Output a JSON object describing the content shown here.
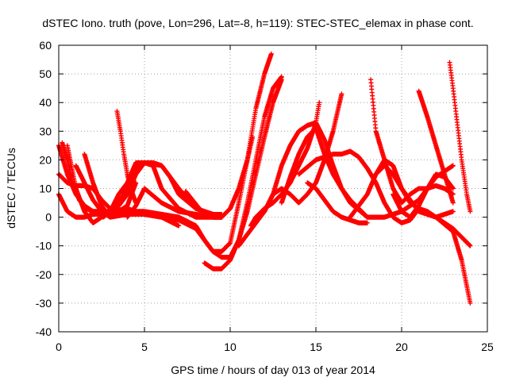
{
  "chart_data": {
    "type": "scatter",
    "title": "dSTEC Iono. truth (pove, Lon=296, Lat=-8, h=119): STEC-STEC_elemax in phase cont.",
    "xlabel": "GPS time / hours of day 013 of year 2014",
    "ylabel": "dSTEC  / TECUs",
    "xlim": [
      0,
      25
    ],
    "ylim": [
      -40,
      60
    ],
    "xticks": [
      0,
      5,
      10,
      15,
      20,
      25
    ],
    "yticks": [
      -40,
      -30,
      -20,
      -10,
      0,
      10,
      20,
      30,
      40,
      50,
      60
    ],
    "grid": true,
    "marker": "+",
    "color": "#ff0000",
    "series": [
      {
        "x": [
          0.0,
          0.5,
          1.0,
          1.5,
          2.0,
          2.5,
          3.0,
          4.0,
          5.0,
          6.0,
          7.0,
          8.0,
          8.5,
          9.0,
          9.5,
          10.0,
          10.5,
          11.0,
          11.5,
          12.0,
          12.4
        ],
        "y": [
          8,
          2,
          0,
          0,
          1,
          1,
          2,
          3,
          1,
          0,
          -1,
          -4,
          -8,
          -12,
          -12,
          -9,
          5,
          20,
          38,
          50,
          57
        ]
      },
      {
        "x": [
          0.0,
          0.5,
          1.0,
          1.5,
          2.0,
          2.5,
          3.0,
          4.0,
          5.0,
          6.0,
          7.0,
          8.0,
          8.5,
          9.0,
          9.5,
          10.0,
          10.5,
          11.0,
          11.5,
          12.0,
          12.5,
          13.0
        ],
        "y": [
          25,
          15,
          8,
          4,
          2,
          1,
          1,
          2,
          2,
          1,
          0,
          -3,
          -8,
          -12,
          -14,
          -14,
          -8,
          5,
          20,
          35,
          45,
          49
        ]
      },
      {
        "x": [
          8.5,
          9.0,
          9.5,
          10.0,
          10.5,
          11.0,
          11.5,
          12.0,
          12.5,
          13.0
        ],
        "y": [
          -16,
          -18,
          -18,
          -15,
          -8,
          2,
          15,
          28,
          40,
          48
        ]
      },
      {
        "x": [
          7.4,
          7.8,
          8.2,
          8.6,
          9.0,
          9.5,
          10.0,
          10.5,
          11.0,
          11.3
        ],
        "y": [
          9,
          6,
          3,
          1,
          0,
          0,
          3,
          10,
          20,
          28
        ]
      },
      {
        "x": [
          0.2,
          0.5,
          0.8,
          1.2,
          1.6,
          2.0,
          2.5,
          3.0,
          3.5,
          4.0,
          4.5,
          5.0,
          6.0,
          7.0,
          8.0,
          9.0,
          9.5
        ],
        "y": [
          26,
          20,
          12,
          6,
          3,
          2,
          2,
          2,
          4,
          8,
          15,
          19,
          18,
          10,
          3,
          1,
          1
        ]
      },
      {
        "x": [
          0.5,
          1.0,
          1.5,
          2.0,
          2.5,
          3.0,
          3.5,
          4.0,
          4.5,
          5.0,
          5.5,
          6.0,
          6.5,
          7.0,
          8.0,
          9.0,
          9.5
        ],
        "y": [
          25,
          10,
          2,
          -2,
          0,
          2,
          5,
          10,
          17,
          19,
          19,
          18,
          14,
          8,
          3,
          1,
          1
        ]
      },
      {
        "x": [
          0.0,
          0.5,
          1.0,
          1.5,
          2.0,
          2.5,
          3.0,
          3.5,
          4.0,
          4.5
        ],
        "y": [
          15,
          12,
          11,
          11,
          10,
          6,
          3,
          2,
          4,
          12
        ]
      },
      {
        "x": [
          1.5,
          2.0,
          2.5,
          3.0
        ],
        "y": [
          22,
          12,
          4,
          0
        ]
      },
      {
        "x": [
          3.4,
          3.6,
          3.8,
          4.0,
          4.2,
          4.5
        ],
        "y": [
          37,
          30,
          22,
          15,
          10,
          5
        ]
      },
      {
        "x": [
          4.0,
          4.5,
          5.0,
          6.0,
          7.0,
          8.0,
          9.0,
          9.5
        ],
        "y": [
          0,
          4,
          10,
          5,
          2,
          1,
          0,
          0
        ]
      },
      {
        "x": [
          2.6,
          3.0,
          3.5,
          4.0,
          4.5,
          5.0,
          5.5,
          6.0,
          7.0,
          8.0,
          8.5,
          9.0,
          9.5
        ],
        "y": [
          0,
          2,
          8,
          12,
          19,
          19,
          18,
          10,
          3,
          0,
          0,
          0,
          0
        ]
      },
      {
        "x": [
          1.0,
          1.5,
          2.0,
          2.5,
          3.0
        ],
        "y": [
          18,
          12,
          6,
          2,
          0
        ]
      },
      {
        "x": [
          3.0,
          4.0,
          5.0,
          6.0,
          7.0
        ],
        "y": [
          0,
          1,
          1,
          0,
          -3
        ]
      },
      {
        "x": [
          10.5,
          11.0,
          11.5,
          12.0,
          12.5,
          13.0,
          13.5,
          14.0,
          14.5,
          15.0,
          15.5,
          16.0,
          16.5,
          17.0,
          18.0,
          19.0,
          20.0,
          21.0,
          22.0,
          23.0
        ],
        "y": [
          -10,
          -6,
          -2,
          2,
          8,
          18,
          25,
          30,
          32,
          33,
          27,
          18,
          10,
          5,
          0,
          0,
          2,
          6,
          14,
          18
        ]
      },
      {
        "x": [
          11.2,
          11.5,
          12.0,
          12.5,
          13.0,
          13.5,
          14.0,
          14.5,
          15.0,
          15.2
        ],
        "y": [
          -3,
          0,
          3,
          5,
          8,
          12,
          18,
          24,
          33,
          40
        ]
      },
      {
        "x": [
          11.5,
          12.0,
          12.5,
          13.0,
          13.5,
          14.0,
          14.5,
          15.0,
          15.5,
          16.0,
          16.5
        ],
        "y": [
          -1,
          2,
          8,
          10,
          8,
          5,
          8,
          12,
          20,
          30,
          43
        ]
      },
      {
        "x": [
          13.0,
          13.5,
          14.0,
          14.5,
          15.0,
          15.5,
          16.0,
          16.5,
          17.0,
          17.5,
          18.0
        ],
        "y": [
          5,
          14,
          22,
          28,
          31,
          22,
          15,
          10,
          6,
          3,
          0
        ]
      },
      {
        "x": [
          14.0,
          15.0,
          16.0,
          16.5,
          17.0,
          17.5,
          18.0,
          18.5,
          19.0,
          19.5,
          20.0,
          20.5,
          21.0
        ],
        "y": [
          15,
          20,
          22,
          22,
          23,
          21,
          17,
          12,
          5,
          0,
          -2,
          -1,
          3
        ]
      },
      {
        "x": [
          14.5,
          15.0,
          15.5,
          16.0,
          16.5,
          17.0,
          17.5,
          18.0
        ],
        "y": [
          12,
          10,
          6,
          2,
          0,
          -1,
          -2,
          -2
        ]
      },
      {
        "x": [
          18.2,
          18.5,
          19.0,
          19.5,
          20.0,
          20.5,
          21.0,
          21.5,
          22.0,
          22.5,
          23.0
        ],
        "y": [
          48,
          30,
          20,
          10,
          5,
          8,
          10,
          10,
          11,
          10,
          8
        ]
      },
      {
        "x": [
          17.0,
          17.5,
          18.0,
          18.5,
          19.0,
          19.5,
          20.0,
          21.0,
          22.0,
          23.0
        ],
        "y": [
          0,
          4,
          8,
          15,
          20,
          18,
          10,
          2,
          0,
          2
        ]
      },
      {
        "x": [
          18.5,
          19.0,
          19.5,
          20.0,
          20.5,
          21.0,
          21.5,
          22.0,
          23.0,
          23.5,
          24.0
        ],
        "y": [
          15,
          18,
          15,
          10,
          5,
          3,
          2,
          0,
          -5,
          -15,
          -30
        ]
      },
      {
        "x": [
          19.5,
          20.0,
          20.5,
          21.0,
          21.5,
          22.0,
          22.5,
          23.0
        ],
        "y": [
          8,
          2,
          0,
          4,
          10,
          15,
          14,
          10
        ]
      },
      {
        "x": [
          21.0,
          21.5,
          22.0,
          22.5,
          23.0
        ],
        "y": [
          44,
          35,
          25,
          15,
          5
        ]
      },
      {
        "x": [
          22.8,
          23.0,
          23.2,
          23.5,
          23.8,
          24.0
        ],
        "y": [
          54,
          45,
          35,
          20,
          8,
          2
        ]
      },
      {
        "x": [
          22.0,
          22.5,
          23.0,
          23.5,
          24.0
        ],
        "y": [
          0,
          -2,
          -4,
          -7,
          -10
        ]
      }
    ]
  }
}
